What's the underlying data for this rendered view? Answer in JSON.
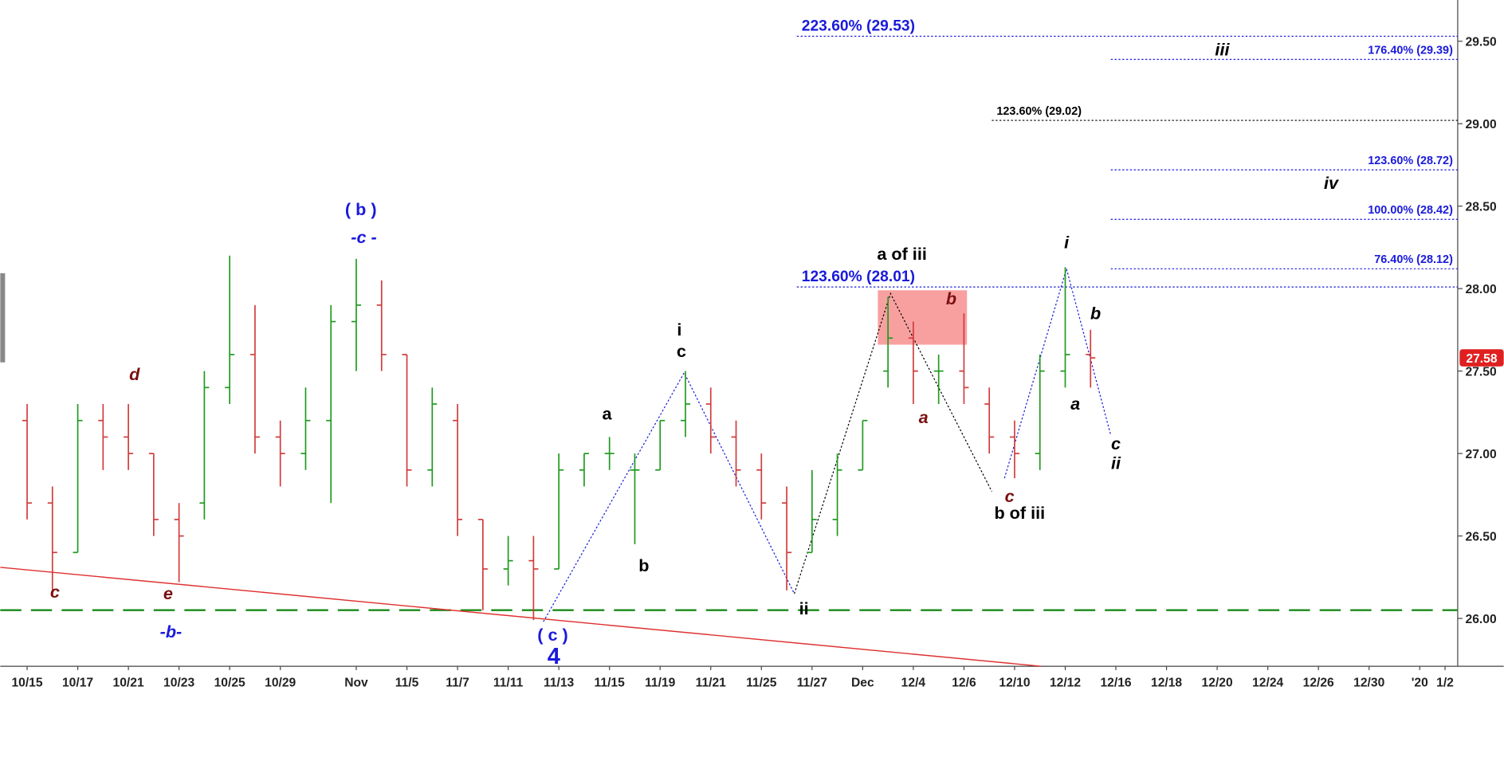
{
  "chart_data": {
    "type": "ohlc",
    "x": [
      0,
      1,
      2,
      3,
      4,
      5,
      6,
      7,
      8,
      9,
      10,
      11,
      12,
      13,
      14,
      15,
      16,
      17,
      18,
      19,
      20,
      21,
      22,
      23,
      24,
      25,
      26,
      27,
      28,
      29,
      30,
      31,
      32,
      33,
      34,
      35,
      36,
      37,
      38,
      39,
      40,
      41,
      42
    ],
    "open": [
      27.2,
      26.7,
      26.4,
      27.2,
      27.1,
      27.0,
      26.6,
      26.7,
      27.4,
      27.6,
      27.1,
      27.0,
      27.2,
      27.8,
      27.9,
      27.6,
      26.9,
      27.2,
      26.6,
      26.3,
      26.35,
      26.3,
      26.9,
      27.0,
      26.9,
      26.9,
      27.2,
      27.3,
      27.1,
      26.9,
      26.7,
      26.4,
      26.6,
      26.9,
      27.5,
      27.7,
      27.5,
      27.5,
      27.3,
      27.1,
      27.0,
      27.5,
      27.6
    ],
    "high": [
      27.3,
      26.8,
      27.3,
      27.3,
      27.3,
      27.0,
      26.7,
      27.5,
      28.2,
      27.9,
      27.2,
      27.4,
      27.9,
      28.18,
      28.05,
      27.6,
      27.4,
      27.3,
      26.6,
      26.5,
      26.5,
      27.0,
      27.0,
      27.1,
      27.0,
      27.2,
      27.5,
      27.4,
      27.2,
      27.0,
      26.8,
      26.9,
      27.0,
      27.2,
      27.95,
      27.8,
      27.6,
      27.85,
      27.4,
      27.2,
      27.6,
      28.13,
      27.75
    ],
    "low": [
      26.6,
      26.13,
      26.4,
      26.9,
      26.9,
      26.5,
      26.22,
      26.6,
      27.3,
      27.0,
      26.8,
      26.9,
      26.7,
      27.5,
      27.5,
      26.8,
      26.8,
      26.5,
      26.05,
      26.2,
      25.99,
      26.3,
      26.8,
      26.9,
      26.45,
      26.9,
      27.1,
      27.0,
      26.8,
      26.6,
      26.17,
      26.4,
      26.5,
      26.9,
      27.4,
      27.3,
      27.3,
      27.3,
      27.0,
      26.85,
      26.9,
      27.4,
      27.4
    ],
    "close": [
      26.7,
      26.4,
      27.2,
      27.1,
      27.0,
      26.6,
      26.5,
      27.4,
      27.6,
      27.1,
      27.0,
      27.2,
      27.8,
      27.9,
      27.6,
      26.9,
      27.3,
      26.6,
      26.3,
      26.35,
      26.3,
      26.9,
      27.0,
      27.0,
      26.9,
      27.2,
      27.3,
      27.1,
      26.9,
      26.7,
      26.4,
      26.6,
      26.9,
      27.2,
      27.7,
      27.5,
      27.5,
      27.4,
      27.1,
      27.0,
      27.5,
      27.6,
      27.58
    ],
    "up_color": "#1f9a1f",
    "down_color": "#d23b3b",
    "xlim": [
      -1.06,
      56.5
    ],
    "xticks": [
      {
        "value": 0,
        "label": "10/15"
      },
      {
        "value": 2,
        "label": "10/17"
      },
      {
        "value": 4,
        "label": "10/21"
      },
      {
        "value": 6,
        "label": "10/23"
      },
      {
        "value": 8,
        "label": "10/25"
      },
      {
        "value": 10,
        "label": "10/29"
      },
      {
        "value": 13,
        "label": "Nov"
      },
      {
        "value": 15,
        "label": "11/5"
      },
      {
        "value": 17,
        "label": "11/7"
      },
      {
        "value": 19,
        "label": "11/11"
      },
      {
        "value": 21,
        "label": "11/13"
      },
      {
        "value": 23,
        "label": "11/15"
      },
      {
        "value": 25,
        "label": "11/19"
      },
      {
        "value": 27,
        "label": "11/21"
      },
      {
        "value": 29,
        "label": "11/25"
      },
      {
        "value": 31,
        "label": "11/27"
      },
      {
        "value": 33,
        "label": "Dec"
      },
      {
        "value": 35,
        "label": "12/4"
      },
      {
        "value": 37,
        "label": "12/6"
      },
      {
        "value": 39,
        "label": "12/10"
      },
      {
        "value": 41,
        "label": "12/12"
      },
      {
        "value": 43,
        "label": "12/16"
      },
      {
        "value": 45,
        "label": "12/18"
      },
      {
        "value": 47,
        "label": "12/20"
      },
      {
        "value": 49,
        "label": "12/24"
      },
      {
        "value": 51,
        "label": "12/26"
      },
      {
        "value": 53,
        "label": "12/30"
      },
      {
        "value": 55,
        "label": "'20"
      },
      {
        "value": 56,
        "label": "1/2"
      }
    ],
    "ylim": [
      25.71,
      29.75
    ],
    "yticks": [
      {
        "value": 26,
        "label": "26.00"
      },
      {
        "value": 26.5,
        "label": "26.50"
      },
      {
        "value": 27,
        "label": "27.00"
      },
      {
        "value": 27.5,
        "label": "27.50"
      },
      {
        "value": 28,
        "label": "28.00"
      },
      {
        "value": 28.5,
        "label": "28.50"
      },
      {
        "value": 29,
        "label": "29.00"
      },
      {
        "value": 29.5,
        "label": "29.50"
      }
    ],
    "last_price": 27.58,
    "last_price_color": "#e02020",
    "hline": {
      "value": 26.05,
      "color": "#1a8a1a"
    },
    "trendline": {
      "color": "#e03030",
      "points": [
        [
          -1.06,
          26.31
        ],
        [
          40.04,
          25.71
        ]
      ]
    },
    "zone": {
      "color": "#f8a0a0",
      "x": [
        33.6,
        37.12
      ],
      "y": [
        27.66,
        27.99
      ]
    },
    "levels": [
      {
        "label": "223.60% (29.53)",
        "value": 29.53,
        "from": 30.4,
        "color": "#1a1adc",
        "align": "left",
        "large": true
      },
      {
        "label": "176.40% (29.39)",
        "value": 29.39,
        "from": 42.8,
        "color": "#1a1adc",
        "align": "right"
      },
      {
        "label": "123.60% (29.02)",
        "value": 29.02,
        "from": 38.1,
        "color": "#000000",
        "align": "left"
      },
      {
        "label": "123.60% (28.72)",
        "value": 28.72,
        "from": 42.8,
        "color": "#1a1adc",
        "align": "right"
      },
      {
        "label": "100.00% (28.42)",
        "value": 28.42,
        "from": 42.8,
        "color": "#1a1adc",
        "align": "right"
      },
      {
        "label": "76.40% (28.12)",
        "value": 28.12,
        "from": 42.8,
        "color": "#1a1adc",
        "align": "right"
      },
      {
        "label": "123.60% (28.01)",
        "value": 28.01,
        "from": 30.4,
        "color": "#1a1adc",
        "align": "left",
        "large": true
      }
    ],
    "waves": [
      {
        "color": "#1a1adc",
        "points": [
          [
            20.39,
            25.98
          ],
          [
            25.95,
            27.49
          ],
          [
            30.3,
            26.15
          ]
        ]
      },
      {
        "color": "#000000",
        "points": [
          [
            30.3,
            26.15
          ],
          [
            34.1,
            27.97
          ],
          [
            38.1,
            26.77
          ]
        ]
      },
      {
        "color": "#1a1adc",
        "points": [
          [
            38.6,
            26.85
          ],
          [
            41.05,
            28.12
          ],
          [
            42.8,
            27.11
          ]
        ]
      }
    ],
    "annotations": [
      {
        "text": "( b )",
        "x": 13.18,
        "y": 28.48,
        "color": "#1a1adc"
      },
      {
        "text": "-c -",
        "x": 13.3,
        "y": 28.31,
        "color": "#1a1adc",
        "italic": true
      },
      {
        "text": "d",
        "x": 4.24,
        "y": 27.48,
        "color": "#7a1010",
        "italic": true
      },
      {
        "text": "c",
        "x": 1.1,
        "y": 26.16,
        "color": "#7a1010",
        "italic": true
      },
      {
        "text": "e",
        "x": 5.57,
        "y": 26.15,
        "color": "#7a1010",
        "italic": true
      },
      {
        "text": "-b-",
        "x": 5.68,
        "y": 25.92,
        "color": "#1a1adc",
        "italic": true
      },
      {
        "text": "( c )",
        "x": 20.76,
        "y": 25.9,
        "color": "#1a1adc"
      },
      {
        "text": "4",
        "x": 20.8,
        "y": 25.76,
        "color": "#1a1adc",
        "large": true
      },
      {
        "text": "a",
        "x": 22.9,
        "y": 27.24,
        "color": "#000000"
      },
      {
        "text": "b",
        "x": 24.36,
        "y": 26.32,
        "color": "#000000"
      },
      {
        "text": "i",
        "x": 25.76,
        "y": 27.75,
        "color": "#000000"
      },
      {
        "text": "c",
        "x": 25.84,
        "y": 27.62,
        "color": "#000000"
      },
      {
        "text": "ii",
        "x": 30.68,
        "y": 26.06,
        "color": "#000000"
      },
      {
        "text": "a of iii",
        "x": 34.55,
        "y": 28.21,
        "color": "#000000"
      },
      {
        "text": "b",
        "x": 36.5,
        "y": 27.94,
        "color": "#7a1010",
        "italic": true
      },
      {
        "text": "a",
        "x": 35.4,
        "y": 27.22,
        "color": "#7a1010",
        "italic": true
      },
      {
        "text": "c",
        "x": 38.8,
        "y": 26.74,
        "color": "#7a1010",
        "italic": true
      },
      {
        "text": "b of iii",
        "x": 39.2,
        "y": 26.64,
        "color": "#000000"
      },
      {
        "text": "i",
        "x": 41.05,
        "y": 28.28,
        "color": "#000000",
        "italic": true
      },
      {
        "text": "b",
        "x": 42.2,
        "y": 27.85,
        "color": "#000000",
        "italic": true
      },
      {
        "text": "a",
        "x": 41.4,
        "y": 27.3,
        "color": "#000000",
        "italic": true
      },
      {
        "text": "c",
        "x": 43.0,
        "y": 27.06,
        "color": "#000000",
        "italic": true
      },
      {
        "text": "ii",
        "x": 43.0,
        "y": 26.94,
        "color": "#000000",
        "italic": true
      },
      {
        "text": "iii",
        "x": 47.2,
        "y": 29.45,
        "color": "#000000",
        "italic": true
      },
      {
        "text": "iv",
        "x": 51.5,
        "y": 28.64,
        "color": "#000000",
        "italic": true
      }
    ]
  }
}
